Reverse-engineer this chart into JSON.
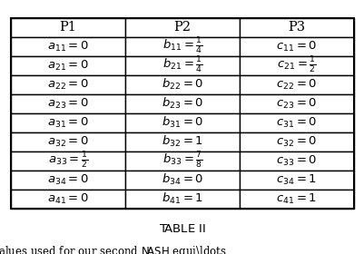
{
  "headers": [
    "P1",
    "P2",
    "P3"
  ],
  "rows": [
    [
      "$a_{11} = 0$",
      "$b_{11} = \\frac{1}{4}$",
      "$c_{11} = 0$"
    ],
    [
      "$a_{21} = 0$",
      "$b_{21} = \\frac{1}{4}$",
      "$c_{21} = \\frac{1}{2}$"
    ],
    [
      "$a_{22} = 0$",
      "$b_{22} = 0$",
      "$c_{22} = 0$"
    ],
    [
      "$a_{23} = 0$",
      "$b_{23} = 0$",
      "$c_{23} = 0$"
    ],
    [
      "$a_{31} = 0$",
      "$b_{31} = 0$",
      "$c_{31} = 0$"
    ],
    [
      "$a_{32} = 0$",
      "$b_{32} = 1$",
      "$c_{32} = 0$"
    ],
    [
      "$a_{33} = \\frac{1}{2}$",
      "$b_{33} = \\frac{7}{8}$",
      "$c_{33} = 0$"
    ],
    [
      "$a_{34} = 0$",
      "$b_{34} = 0$",
      "$c_{34} = 1$"
    ],
    [
      "$a_{41} = 0$",
      "$b_{41} = 1$",
      "$c_{41} = 1$"
    ]
  ],
  "caption": "T\\textsc{able} II",
  "subcaption": "alues used for our second N\\textsc{ash} equi...",
  "fig_width": 4.02,
  "fig_height": 2.8,
  "dpi": 100,
  "table_font_size": 9.5,
  "header_font_size": 10.5,
  "caption_font_size": 9.5,
  "bg_color": "#ffffff",
  "line_color": "#000000"
}
